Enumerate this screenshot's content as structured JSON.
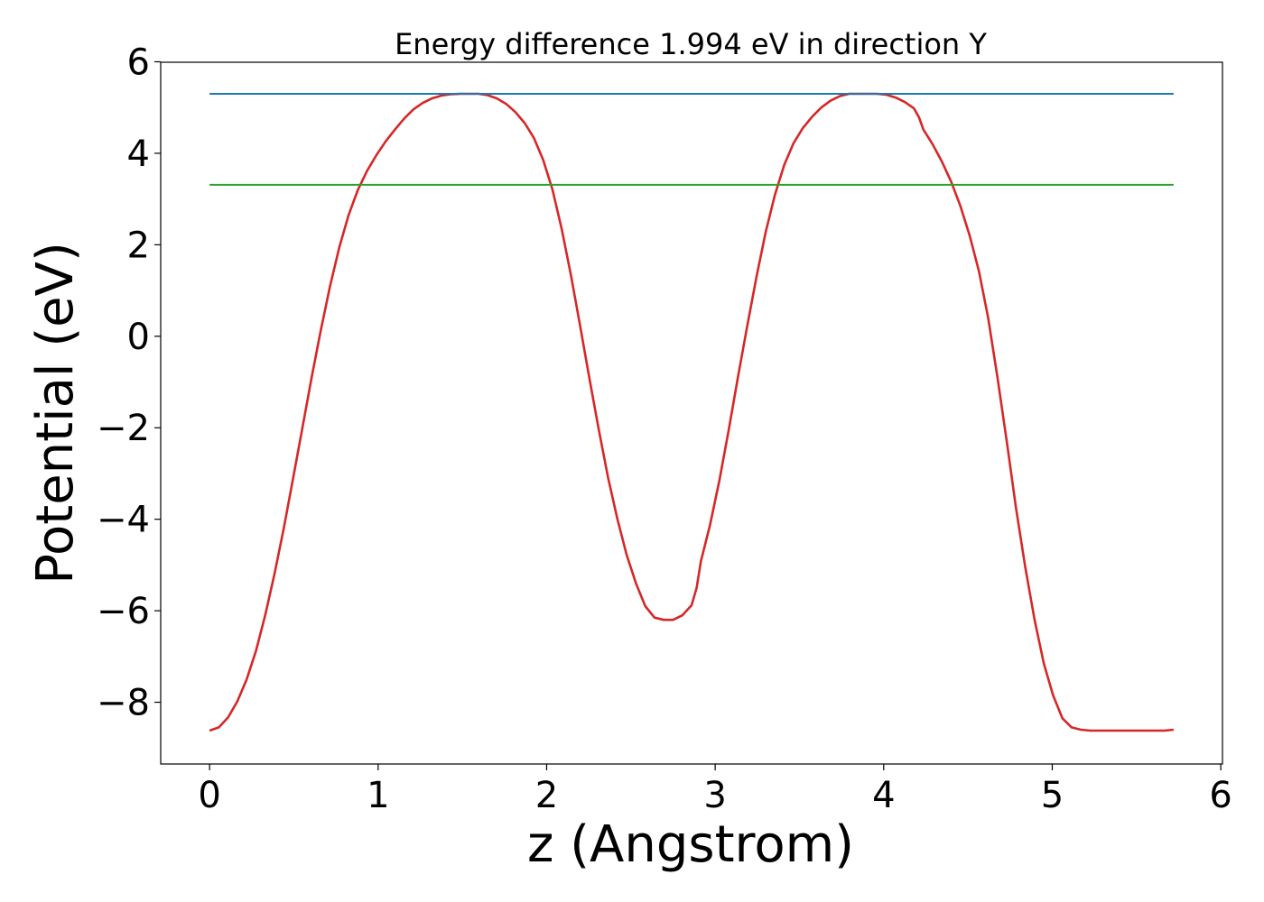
{
  "chart_data": {
    "type": "line",
    "title": "Energy difference 1.994 eV in direction Y",
    "xlabel": "z (Angstrom)",
    "ylabel": "Potential (eV)",
    "xlim": [
      -0.29,
      6.01
    ],
    "ylim": [
      -9.35,
      5.99
    ],
    "xticks": [
      0,
      1,
      2,
      3,
      4,
      5,
      6
    ],
    "yticks": [
      -8,
      -6,
      -4,
      -2,
      0,
      2,
      4,
      6
    ],
    "grid": false,
    "legend": "none",
    "series": [
      {
        "color": "#d62728",
        "x": [
          0.0,
          0.055,
          0.11,
          0.165,
          0.22,
          0.275,
          0.33,
          0.385,
          0.44,
          0.495,
          0.55,
          0.605,
          0.66,
          0.715,
          0.77,
          0.825,
          0.88,
          0.935,
          0.99,
          1.045,
          1.1,
          1.155,
          1.21,
          1.265,
          1.32,
          1.375,
          1.43,
          1.485,
          1.54,
          1.575,
          1.595,
          1.65,
          1.705,
          1.76,
          1.815,
          1.87,
          1.925,
          1.98,
          2.035,
          2.09,
          2.145,
          2.2,
          2.255,
          2.31,
          2.365,
          2.42,
          2.475,
          2.53,
          2.585,
          2.64,
          2.695,
          2.75,
          2.805,
          2.86,
          2.89,
          2.915,
          2.97,
          3.025,
          3.08,
          3.135,
          3.19,
          3.245,
          3.3,
          3.355,
          3.41,
          3.465,
          3.52,
          3.575,
          3.63,
          3.685,
          3.74,
          3.795,
          3.85,
          3.905,
          3.96,
          4.015,
          4.07,
          4.125,
          4.18,
          4.21,
          4.235,
          4.29,
          4.345,
          4.4,
          4.455,
          4.51,
          4.565,
          4.62,
          4.675,
          4.73,
          4.785,
          4.84,
          4.895,
          4.95,
          5.005,
          5.06,
          5.115,
          5.17,
          5.225,
          5.28,
          5.335,
          5.39,
          5.445,
          5.5,
          5.555,
          5.61,
          5.665,
          5.72
        ],
        "y": [
          -8.62,
          -8.55,
          -8.33,
          -7.98,
          -7.5,
          -6.88,
          -6.1,
          -5.2,
          -4.2,
          -3.12,
          -2.02,
          -0.91,
          0.13,
          1.1,
          1.95,
          2.65,
          3.2,
          3.62,
          3.96,
          4.26,
          4.52,
          4.76,
          4.96,
          5.1,
          5.2,
          5.26,
          5.29,
          5.3,
          5.3,
          5.3,
          5.3,
          5.27,
          5.2,
          5.08,
          4.9,
          4.66,
          4.33,
          3.85,
          3.2,
          2.33,
          1.32,
          0.2,
          -0.95,
          -2.05,
          -3.1,
          -4.0,
          -4.78,
          -5.4,
          -5.9,
          -6.15,
          -6.2,
          -6.2,
          -6.1,
          -5.88,
          -5.5,
          -4.92,
          -4.12,
          -3.15,
          -2.05,
          -0.9,
          0.22,
          1.3,
          2.28,
          3.1,
          3.75,
          4.22,
          4.55,
          4.8,
          5.0,
          5.15,
          5.25,
          5.3,
          5.3,
          5.3,
          5.3,
          5.28,
          5.22,
          5.12,
          4.98,
          4.78,
          4.52,
          4.2,
          3.82,
          3.38,
          2.85,
          2.2,
          1.42,
          0.4,
          -0.9,
          -2.3,
          -3.75,
          -5.05,
          -6.2,
          -7.15,
          -7.85,
          -8.35,
          -8.55,
          -8.6,
          -8.62,
          -8.62,
          -8.62,
          -8.62,
          -8.62,
          -8.62,
          -8.62,
          -8.62,
          -8.62,
          -8.6
        ]
      },
      {
        "color": "#1f77b4",
        "x": [
          0.0,
          5.72
        ],
        "y": [
          5.3,
          5.3
        ]
      },
      {
        "color": "#2ca02c",
        "x": [
          0.0,
          5.72
        ],
        "y": [
          3.31,
          3.31
        ]
      }
    ]
  }
}
